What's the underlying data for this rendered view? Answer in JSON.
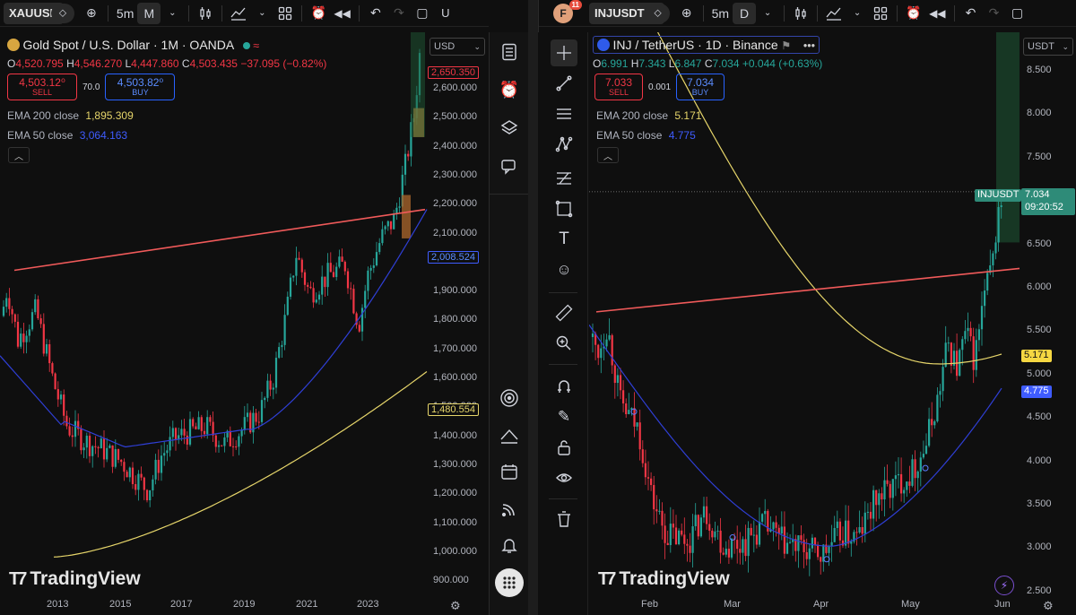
{
  "left": {
    "symbol": "XAUUSD",
    "interval": "5m",
    "interval_sel": "M",
    "cut_text": "U",
    "title": "Gold Spot / U.S. Dollar · 1M · OANDA",
    "ohlc": {
      "o": "4,520.795",
      "h": "4,546.270",
      "l": "4,447.860",
      "c": "4,503.435",
      "chg": "−37.095 (−0.82%)"
    },
    "sell_price": "4,503.12⁰",
    "sell_label": "SELL",
    "spread": "70.0",
    "buy_price": "4,503.82⁰",
    "buy_label": "BUY",
    "ema200_label": "EMA 200 close",
    "ema200_val": "1,895.309",
    "ema50_label": "EMA 50 close",
    "ema50_val": "3,064.163",
    "currency": "USD",
    "price_ticks": [
      "2,600.000",
      "2,500.000",
      "2,400.000",
      "2,300.000",
      "2,200.000",
      "2,100.000",
      "1,900.000",
      "1,800.000",
      "1,700.000",
      "1,600.000",
      "1,500.000",
      "1,400.000",
      "1,300.000",
      "1,200.000",
      "1,100.000",
      "1,000.000",
      "900.000"
    ],
    "price_label_top": "2,650.350",
    "price_label_blue": "2,008.524",
    "price_label_yellow": "1,480.554",
    "time_ticks": [
      "2013",
      "2015",
      "2017",
      "2019",
      "2021",
      "2023"
    ],
    "logo": "TradingView",
    "colors": {
      "up": "#26a69a",
      "down": "#f23645",
      "ema200": "#e6d56a",
      "ema50": "#2f3fd6",
      "trend": "#f05a5a"
    }
  },
  "right": {
    "avatar": "F",
    "notif": "11",
    "symbol": "INJUSDT",
    "interval": "5m",
    "interval_sel": "D",
    "title": "INJ / TetherUS · 1D · Binance",
    "ohlc": {
      "o": "6.991",
      "h": "7.343",
      "l": "6.847",
      "c": "7.034",
      "chg": "+0.044 (+0.63%)"
    },
    "sell_price": "7.033",
    "sell_label": "SELL",
    "spread": "0.001",
    "buy_price": "7.034",
    "buy_label": "BUY",
    "ema200_label": "EMA 200 close",
    "ema200_val": "5.171",
    "ema50_label": "EMA 50 close",
    "ema50_val": "4.775",
    "currency": "USDT",
    "price_ticks": [
      "8.500",
      "8.000",
      "7.500",
      "6.500",
      "6.000",
      "5.500",
      "5.000",
      "4.500",
      "4.000",
      "3.500",
      "3.000",
      "2.500"
    ],
    "sym_tag": "INJUSDT",
    "last_price": "7.034",
    "countdown": "09:20:52",
    "price_label_yellow": "5.171",
    "price_label_blue": "4.775",
    "time_ticks": [
      "Feb",
      "Mar",
      "Apr",
      "May",
      "Jun"
    ],
    "logo": "TradingView"
  },
  "icons": {
    "mid": [
      "list-icon",
      "alarm-clock-icon",
      "layers-icon",
      "chat-icon",
      "target-icon",
      "chart-triangle-icon",
      "calendar-icon",
      "broadcast-icon",
      "bell-icon",
      "apps-grid-icon"
    ],
    "draw": [
      "crosshair-icon",
      "trendline-icon",
      "lines-icon",
      "node-icon",
      "fib-icon",
      "rectangle-icon",
      "text-icon",
      "emoji-icon",
      "ruler-icon",
      "zoom-icon",
      "magnet-icon",
      "pencil-lock-icon",
      "lock-icon",
      "eye-icon",
      "trash-icon"
    ]
  }
}
